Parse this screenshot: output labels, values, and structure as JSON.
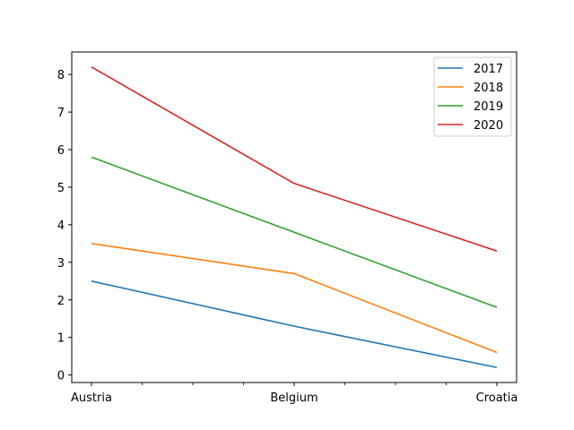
{
  "chart_data": {
    "type": "line",
    "categories": [
      "Austria",
      "Belgium",
      "Croatia"
    ],
    "series": [
      {
        "name": "2017",
        "values": [
          2.5,
          1.3,
          0.2
        ],
        "color": "#1f77b4"
      },
      {
        "name": "2018",
        "values": [
          3.5,
          2.7,
          0.6
        ],
        "color": "#ff7f0e"
      },
      {
        "name": "2019",
        "values": [
          5.8,
          3.8,
          1.8
        ],
        "color": "#2ca02c"
      },
      {
        "name": "2020",
        "values": [
          8.2,
          5.1,
          3.3
        ],
        "color": "#d62728"
      }
    ],
    "yticks": [
      0,
      1,
      2,
      3,
      4,
      5,
      6,
      7,
      8
    ],
    "ylim": [
      -0.2,
      8.6
    ],
    "legend_position": "top-right",
    "grid": false
  }
}
